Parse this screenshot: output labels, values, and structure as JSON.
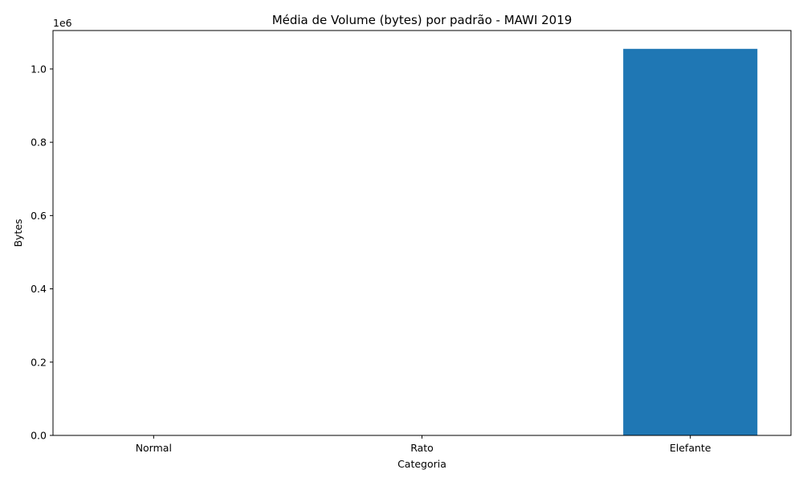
{
  "chart_data": {
    "type": "bar",
    "title": "Média de Volume (bytes) por padrão - MAWI 2019",
    "xlabel": "Categoria",
    "ylabel": "Bytes",
    "categories": [
      "Normal",
      "Rato",
      "Elefante"
    ],
    "values": [
      150,
      120,
      1055000
    ],
    "bar_color": "#1f77b4",
    "ylim": [
      0,
      1105000
    ],
    "y_ticks": [
      0,
      200000,
      400000,
      600000,
      800000,
      1000000
    ],
    "y_tick_labels": [
      "0.0",
      "0.2",
      "0.4",
      "0.6",
      "0.8",
      "1.0"
    ],
    "y_offset_label": "1e6",
    "grid": false,
    "legend": "none"
  }
}
